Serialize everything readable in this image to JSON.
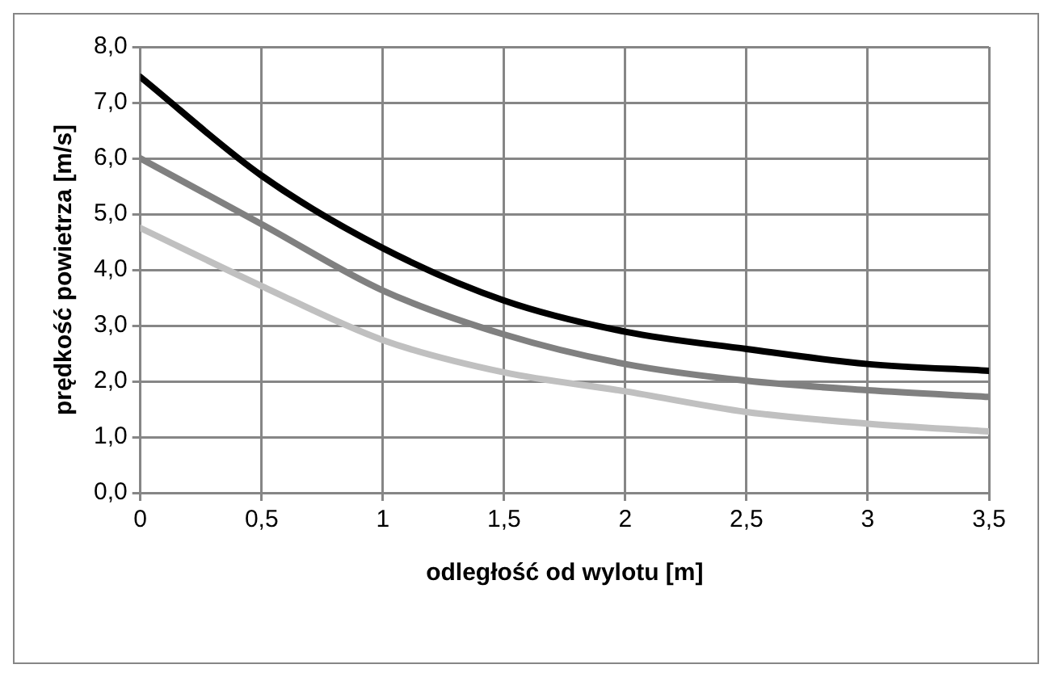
{
  "chart_data": {
    "type": "line",
    "xlabel": "odległość od wylotu [m]",
    "ylabel": "prędkość powietrza [m/s]",
    "x": [
      0,
      0.5,
      1,
      1.5,
      2,
      2.5,
      3,
      3.5
    ],
    "series": [
      {
        "color": "#000000",
        "values": [
          7.46,
          5.69,
          4.39,
          3.45,
          2.89,
          2.58,
          2.31,
          2.19
        ]
      },
      {
        "color": "#808080",
        "values": [
          6.0,
          4.82,
          3.63,
          2.84,
          2.31,
          2.01,
          1.84,
          1.72
        ]
      },
      {
        "color": "#c0c0c0",
        "values": [
          4.75,
          3.71,
          2.74,
          2.16,
          1.82,
          1.45,
          1.24,
          1.1
        ]
      }
    ],
    "xlim": [
      0,
      3.5
    ],
    "xticks": [
      0,
      {
        "value": 0.5,
        "label": "0,5"
      },
      1,
      {
        "value": 1.5,
        "label": "1,5"
      },
      2,
      {
        "value": 2.5,
        "label": "2,5"
      },
      3,
      {
        "value": 3.5,
        "label": "3,5"
      }
    ],
    "ylim": [
      0,
      8
    ],
    "yticks": [
      {
        "value": 0,
        "label": "0,0"
      },
      {
        "value": 1,
        "label": "1,0"
      },
      {
        "value": 2,
        "label": "2,0"
      },
      {
        "value": 3,
        "label": "3,0"
      },
      {
        "value": 4,
        "label": "4,0"
      },
      {
        "value": 5,
        "label": "5,0"
      },
      {
        "value": 6,
        "label": "6,0"
      },
      {
        "value": 7,
        "label": "7,0"
      },
      {
        "value": 8,
        "label": "8,0"
      }
    ],
    "grid": true,
    "legend": false,
    "marker": "none",
    "line_style": "solid"
  }
}
